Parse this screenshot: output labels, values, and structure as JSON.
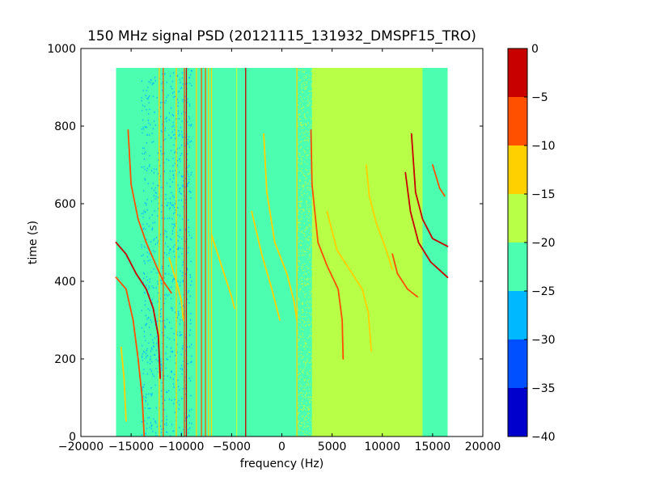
{
  "chart_data": {
    "type": "heatmap",
    "title": "150 MHz signal PSD (20121115_131932_DMSPF15_TRO)",
    "xlabel": "frequency (Hz)",
    "ylabel": "time (s)",
    "xlim": [
      -20000,
      20000
    ],
    "ylim": [
      0,
      1000
    ],
    "x_ticks": [
      -20000,
      -15000,
      -10000,
      -5000,
      0,
      5000,
      10000,
      15000,
      20000
    ],
    "x_tick_labels": [
      "−20000",
      "−15000",
      "−10000",
      "−5000",
      "0",
      "5000",
      "10000",
      "15000",
      "20000"
    ],
    "y_ticks": [
      0,
      200,
      400,
      600,
      800,
      1000
    ],
    "y_tick_labels": [
      "0",
      "200",
      "400",
      "600",
      "800",
      "1000"
    ],
    "data_extent": {
      "x": [
        -16500,
        16500
      ],
      "y": [
        0,
        950
      ]
    },
    "colorbar": {
      "range": [
        -40,
        0
      ],
      "ticks": [
        0,
        -5,
        -10,
        -15,
        -20,
        -25,
        -30,
        -35,
        -40
      ],
      "tick_labels": [
        "0",
        "−5",
        "−10",
        "−15",
        "−20",
        "−25",
        "−30",
        "−35",
        "−40"
      ],
      "levels": [
        {
          "from": -40,
          "to": -35,
          "color": "#0000cd"
        },
        {
          "from": -35,
          "to": -30,
          "color": "#0050ff"
        },
        {
          "from": -30,
          "to": -25,
          "color": "#00b8ff"
        },
        {
          "from": -25,
          "to": -20,
          "color": "#4cffb0"
        },
        {
          "from": -20,
          "to": -15,
          "color": "#b8ff48"
        },
        {
          "from": -15,
          "to": -10,
          "color": "#ffd000"
        },
        {
          "from": -10,
          "to": -5,
          "color": "#ff5000"
        },
        {
          "from": -5,
          "to": 0,
          "color": "#c80000"
        }
      ]
    },
    "background_level_db": -22.5,
    "high_noise_band_hz": [
      3000,
      14000
    ],
    "high_noise_level_db": -17.5,
    "low_noise_band_hz": [
      -14000,
      -9000
    ],
    "vertical_lines": [
      {
        "x": -12200,
        "db": -12
      },
      {
        "x": -11800,
        "db": -7
      },
      {
        "x": -10500,
        "db": -12
      },
      {
        "x": -9700,
        "db": -7
      },
      {
        "x": -9500,
        "db": -3
      },
      {
        "x": -8500,
        "db": -12
      },
      {
        "x": -8000,
        "db": -7
      },
      {
        "x": -7600,
        "db": -7
      },
      {
        "x": -7300,
        "db": -12
      },
      {
        "x": -7000,
        "db": -12
      },
      {
        "x": -4500,
        "db": -17
      },
      {
        "x": -3600,
        "db": -3
      },
      {
        "x": 1500,
        "db": -12
      }
    ],
    "tracks": [
      {
        "name": "",
        "db": -3,
        "points": [
          [
            -16500,
            500
          ],
          [
            -15500,
            470
          ],
          [
            -14500,
            420
          ],
          [
            -13500,
            380
          ],
          [
            -12800,
            330
          ],
          [
            -12300,
            260
          ],
          [
            -12100,
            150
          ]
        ]
      },
      {
        "name": "",
        "db": -7,
        "points": [
          [
            -16500,
            410
          ],
          [
            -15500,
            380
          ],
          [
            -14800,
            300
          ],
          [
            -14300,
            200
          ],
          [
            -13900,
            100
          ],
          [
            -13700,
            0
          ]
        ]
      },
      {
        "name": "",
        "db": -7,
        "points": [
          [
            -15300,
            790
          ],
          [
            -15000,
            650
          ],
          [
            -14300,
            560
          ],
          [
            -13500,
            500
          ],
          [
            -12500,
            440
          ],
          [
            -11800,
            400
          ],
          [
            -11000,
            370
          ]
        ]
      },
      {
        "name": "",
        "db": -12,
        "points": [
          [
            -16000,
            230
          ],
          [
            -15700,
            150
          ],
          [
            -15500,
            40
          ]
        ]
      },
      {
        "name": "",
        "db": -12,
        "points": [
          [
            -11200,
            460
          ],
          [
            -10500,
            400
          ],
          [
            -10000,
            350
          ],
          [
            -9800,
            300
          ]
        ]
      },
      {
        "name": "",
        "db": -12,
        "points": [
          [
            -7000,
            520
          ],
          [
            -6000,
            440
          ],
          [
            -5000,
            360
          ],
          [
            -4700,
            330
          ]
        ]
      },
      {
        "name": "",
        "db": -12,
        "points": [
          [
            -3000,
            580
          ],
          [
            -2000,
            470
          ],
          [
            -1000,
            380
          ],
          [
            -400,
            320
          ],
          [
            -200,
            300
          ]
        ]
      },
      {
        "name": "",
        "db": -12,
        "points": [
          [
            -1800,
            780
          ],
          [
            -1500,
            630
          ],
          [
            -700,
            500
          ],
          [
            500,
            420
          ],
          [
            1200,
            350
          ],
          [
            1500,
            300
          ]
        ]
      },
      {
        "name": "",
        "db": -7,
        "points": [
          [
            2900,
            790
          ],
          [
            3000,
            650
          ],
          [
            3600,
            500
          ],
          [
            4500,
            440
          ],
          [
            5600,
            380
          ],
          [
            6000,
            300
          ],
          [
            6100,
            200
          ]
        ]
      },
      {
        "name": "",
        "db": -12,
        "points": [
          [
            4500,
            580
          ],
          [
            5500,
            480
          ],
          [
            7000,
            420
          ],
          [
            8000,
            380
          ],
          [
            8600,
            320
          ],
          [
            8900,
            220
          ]
        ]
      },
      {
        "name": "",
        "db": -12,
        "points": [
          [
            8400,
            700
          ],
          [
            8700,
            620
          ],
          [
            9400,
            550
          ],
          [
            10400,
            480
          ],
          [
            11000,
            430
          ]
        ]
      },
      {
        "name": "",
        "db": -3,
        "points": [
          [
            12900,
            780
          ],
          [
            13300,
            630
          ],
          [
            14000,
            560
          ],
          [
            15000,
            510
          ],
          [
            16500,
            490
          ]
        ]
      },
      {
        "name": "",
        "db": -3,
        "points": [
          [
            12300,
            680
          ],
          [
            12800,
            580
          ],
          [
            13600,
            500
          ],
          [
            14800,
            450
          ],
          [
            16500,
            410
          ]
        ]
      },
      {
        "name": "",
        "db": -7,
        "points": [
          [
            11000,
            470
          ],
          [
            11500,
            420
          ],
          [
            12500,
            380
          ],
          [
            13500,
            360
          ]
        ]
      },
      {
        "name": "",
        "db": -7,
        "points": [
          [
            15000,
            700
          ],
          [
            15700,
            640
          ],
          [
            16200,
            620
          ]
        ]
      }
    ]
  }
}
